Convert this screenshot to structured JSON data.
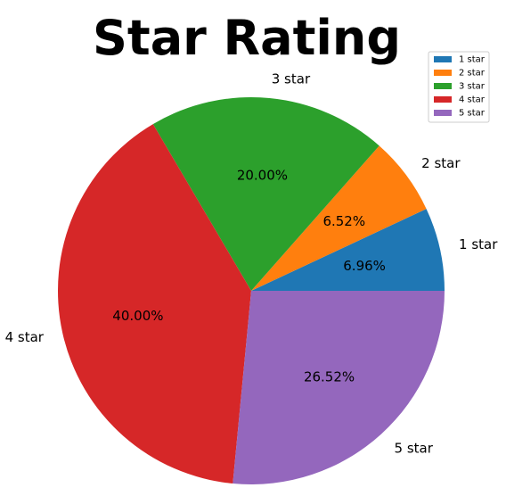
{
  "chart_data": {
    "type": "pie",
    "title": "Star Rating",
    "categories": [
      "1 star",
      "2 star",
      "3 star",
      "4 star",
      "5 star"
    ],
    "values": [
      6.96,
      6.52,
      20.0,
      40.0,
      26.52
    ],
    "value_labels": [
      "6.96%",
      "6.52%",
      "20.00%",
      "40.00%",
      "26.52%"
    ],
    "colors": [
      "#1f77b4",
      "#ff7f0e",
      "#2ca02c",
      "#d62728",
      "#9467bd"
    ],
    "start_angle": 0,
    "direction": "counterclockwise",
    "legend": {
      "placement": "top-right",
      "entries": [
        "1 star",
        "2 star",
        "3 star",
        "4 star",
        "5 star"
      ]
    }
  }
}
